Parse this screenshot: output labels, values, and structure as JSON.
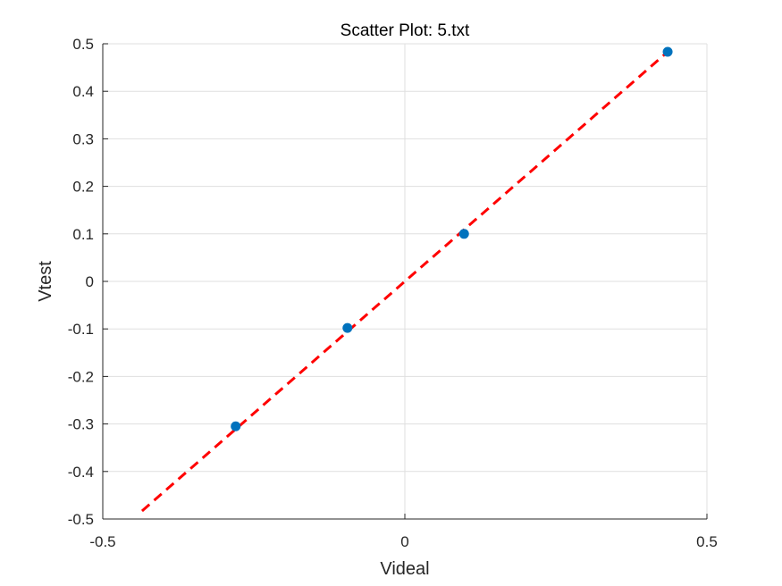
{
  "chart_data": {
    "type": "scatter",
    "title": "Scatter Plot: 5.txt",
    "xlabel": "Videal",
    "ylabel": "Vtest",
    "xlim": [
      -0.5,
      0.5
    ],
    "ylim": [
      -0.5,
      0.5
    ],
    "grid": true,
    "x_ticks": [
      "-0.5",
      "0",
      "0.5"
    ],
    "y_ticks": [
      "-0.5",
      "-0.4",
      "-0.3",
      "-0.2",
      "-0.1",
      "0",
      "0.1",
      "0.2",
      "0.3",
      "0.4",
      "0.5"
    ],
    "x_tick_values": [
      -0.5,
      0,
      0.5
    ],
    "y_tick_values": [
      -0.5,
      -0.4,
      -0.3,
      -0.2,
      -0.1,
      0,
      0.1,
      0.2,
      0.3,
      0.4,
      0.5
    ],
    "series": [
      {
        "marker_color": "#0072BD",
        "points": [
          {
            "x": -0.28,
            "y": -0.305
          },
          {
            "x": -0.095,
            "y": -0.098
          },
          {
            "x": 0.098,
            "y": 0.1
          },
          {
            "x": 0.435,
            "y": 0.483
          }
        ]
      }
    ],
    "fit_line": {
      "style": "dashed",
      "color": "#FF0000",
      "x": [
        -0.435,
        0.435
      ],
      "y": [
        -0.483,
        0.483
      ]
    }
  }
}
